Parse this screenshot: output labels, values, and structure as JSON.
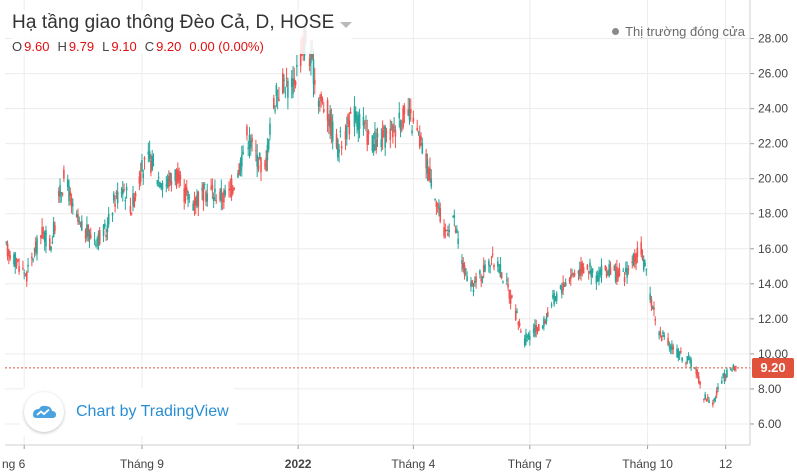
{
  "legend": {
    "title": "Hạ tầng giao thông Đèo Cả, D, HOSE",
    "open_label": "O",
    "open_value": "9.60",
    "high_label": "H",
    "high_value": "9.79",
    "low_label": "L",
    "low_value": "9.10",
    "close_label": "C",
    "close_value": "9.20",
    "change": "0.00 (0.00%)"
  },
  "market_status": "Thị trường đóng cửa",
  "watermark": "Chart by TradingView",
  "last_price_label": "9.20",
  "colors": {
    "up": "#26a69a",
    "down": "#ef5350",
    "grid": "#ececec",
    "axis_text": "#444444",
    "last_price": "#e0523c",
    "watermark": "#2a8ed4"
  },
  "icons": {
    "market_status": "status-dot-icon",
    "watermark": "tradingview-logo-icon",
    "title_menu": "caret-down-icon"
  },
  "chart_data": {
    "type": "candlestick",
    "y_ticks": [
      "6.00",
      "8.00",
      "10.00",
      "12.00",
      "14.00",
      "16.00",
      "18.00",
      "20.00",
      "22.00",
      "24.00",
      "26.00",
      "28.00"
    ],
    "ylim": [
      4.8,
      30.2
    ],
    "x_ticks": [
      "ng 6",
      "Tháng 9",
      "2022",
      "Tháng 4",
      "Tháng 7",
      "Tháng 10",
      "12"
    ],
    "x_ticks_bold": [
      false,
      false,
      true,
      false,
      false,
      false,
      false
    ],
    "x_tick_dates": [
      "2021-06-01",
      "2021-09-01",
      "2022-01-01",
      "2022-04-01",
      "2022-07-01",
      "2022-10-01",
      "2022-12-01"
    ],
    "xlim": [
      "2021-05-17",
      "2022-12-20"
    ],
    "last_close": 9.2,
    "grid": true,
    "close_series": [
      [
        "2021-05-18",
        16.0
      ],
      [
        "2021-05-26",
        15.3
      ],
      [
        "2021-06-03",
        14.5
      ],
      [
        "2021-06-09",
        15.8
      ],
      [
        "2021-06-15",
        16.9
      ],
      [
        "2021-06-22",
        16.2
      ],
      [
        "2021-06-29",
        19.2
      ],
      [
        "2021-07-03",
        20.2
      ],
      [
        "2021-07-09",
        18.2
      ],
      [
        "2021-07-15",
        17.2
      ],
      [
        "2021-07-22",
        16.8
      ],
      [
        "2021-07-28",
        16.6
      ],
      [
        "2021-08-04",
        17.0
      ],
      [
        "2021-08-10",
        18.7
      ],
      [
        "2021-08-17",
        19.6
      ],
      [
        "2021-08-24",
        18.4
      ],
      [
        "2021-08-31",
        20.4
      ],
      [
        "2021-09-07",
        21.1
      ],
      [
        "2021-09-13",
        20.2
      ],
      [
        "2021-09-20",
        19.7
      ],
      [
        "2021-09-27",
        20.3
      ],
      [
        "2021-10-04",
        19.2
      ],
      [
        "2021-10-11",
        18.7
      ],
      [
        "2021-10-18",
        19.1
      ],
      [
        "2021-10-25",
        19.3
      ],
      [
        "2021-11-01",
        19.0
      ],
      [
        "2021-11-08",
        19.1
      ],
      [
        "2021-11-15",
        20.4
      ],
      [
        "2021-11-22",
        22.5
      ],
      [
        "2021-11-29",
        21.4
      ],
      [
        "2021-12-06",
        20.5
      ],
      [
        "2021-12-13",
        24.3
      ],
      [
        "2021-12-20",
        25.6
      ],
      [
        "2021-12-27",
        25.1
      ],
      [
        "2022-01-03",
        27.1
      ],
      [
        "2022-01-07",
        28.0
      ],
      [
        "2022-01-17",
        24.8
      ],
      [
        "2022-01-24",
        23.8
      ],
      [
        "2022-02-01",
        21.8
      ],
      [
        "2022-02-08",
        22.9
      ],
      [
        "2022-02-14",
        23.6
      ],
      [
        "2022-02-21",
        23.0
      ],
      [
        "2022-02-28",
        22.0
      ],
      [
        "2022-03-07",
        22.2
      ],
      [
        "2022-03-14",
        22.6
      ],
      [
        "2022-03-21",
        23.4
      ],
      [
        "2022-03-28",
        23.6
      ],
      [
        "2022-04-04",
        22.6
      ],
      [
        "2022-04-11",
        21.0
      ],
      [
        "2022-04-18",
        19.3
      ],
      [
        "2022-04-25",
        16.8
      ],
      [
        "2022-05-02",
        17.9
      ],
      [
        "2022-05-09",
        15.2
      ],
      [
        "2022-05-16",
        13.7
      ],
      [
        "2022-05-23",
        14.4
      ],
      [
        "2022-05-30",
        15.3
      ],
      [
        "2022-06-06",
        15.2
      ],
      [
        "2022-06-13",
        13.9
      ],
      [
        "2022-06-20",
        12.3
      ],
      [
        "2022-06-27",
        10.8
      ],
      [
        "2022-07-04",
        11.3
      ],
      [
        "2022-07-11",
        11.6
      ],
      [
        "2022-07-18",
        12.9
      ],
      [
        "2022-07-25",
        13.7
      ],
      [
        "2022-08-01",
        14.4
      ],
      [
        "2022-08-08",
        14.8
      ],
      [
        "2022-08-15",
        15.0
      ],
      [
        "2022-08-22",
        14.4
      ],
      [
        "2022-08-29",
        14.8
      ],
      [
        "2022-09-05",
        14.6
      ],
      [
        "2022-09-12",
        14.4
      ],
      [
        "2022-09-19",
        15.2
      ],
      [
        "2022-09-26",
        15.9
      ],
      [
        "2022-10-03",
        13.4
      ],
      [
        "2022-10-10",
        11.2
      ],
      [
        "2022-10-17",
        10.6
      ],
      [
        "2022-10-24",
        10.1
      ],
      [
        "2022-10-31",
        9.7
      ],
      [
        "2022-11-07",
        9.3
      ],
      [
        "2022-11-14",
        7.6
      ],
      [
        "2022-11-21",
        7.2
      ],
      [
        "2022-11-28",
        8.5
      ],
      [
        "2022-12-05",
        9.1
      ],
      [
        "2022-12-12",
        9.2
      ]
    ]
  }
}
